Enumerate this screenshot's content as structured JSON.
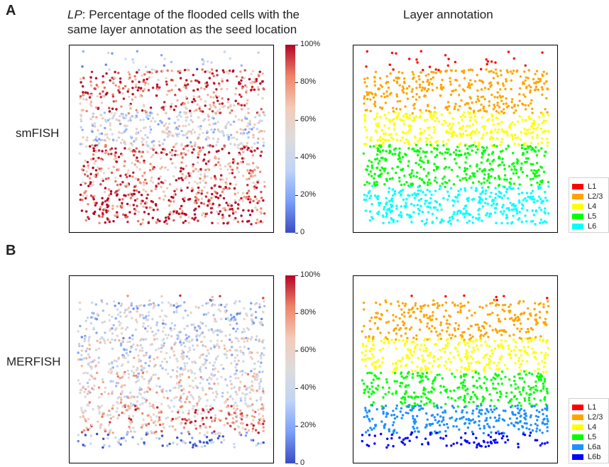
{
  "panels": {
    "a_label": "A",
    "b_label": "B",
    "lp_prefix": "LP",
    "lp_line1_rest": ": Percentage of the flooded cells with the",
    "lp_line2": "same layer annotation as the seed location",
    "layer_title": "Layer annotation",
    "row1_label": "smFISH",
    "row2_label": "MERFISH"
  },
  "colorbar": {
    "ticks": [
      "100%",
      "80%",
      "60%",
      "40%",
      "20%",
      "0"
    ],
    "tick_values": [
      100,
      80,
      60,
      40,
      20,
      0
    ],
    "colormap": "coolwarm",
    "colors": [
      "#3b4cc0",
      "#7b9ff9",
      "#c0d4f5",
      "#dddcdc",
      "#f2cbb7",
      "#ee8468",
      "#b40426"
    ]
  },
  "legend_smfish": [
    {
      "label": "L1",
      "color": "#ff0000"
    },
    {
      "label": "L2/3",
      "color": "#ffa500"
    },
    {
      "label": "L4",
      "color": "#ffff00"
    },
    {
      "label": "L5",
      "color": "#00ff00"
    },
    {
      "label": "L6",
      "color": "#00ffff"
    }
  ],
  "legend_merfish": [
    {
      "label": "L1",
      "color": "#ff0000"
    },
    {
      "label": "L2/3",
      "color": "#ffa500"
    },
    {
      "label": "L4",
      "color": "#ffff00"
    },
    {
      "label": "L5",
      "color": "#00ff00"
    },
    {
      "label": "L6a",
      "color": "#1e90ff"
    },
    {
      "label": "L6b",
      "color": "#0000ff"
    }
  ],
  "chart_data": [
    {
      "type": "scatter",
      "dataset": "smFISH",
      "value": "LP",
      "colorbar_range": [
        0,
        100
      ],
      "layer_bands_lp": [
        {
          "layer": "L1",
          "typical_lp": 20
        },
        {
          "layer": "L2/3",
          "typical_lp": 85
        },
        {
          "layer": "L4",
          "typical_lp": 45
        },
        {
          "layer": "L5",
          "typical_lp": 80
        },
        {
          "layer": "L6",
          "typical_lp": 92
        }
      ]
    },
    {
      "type": "scatter",
      "dataset": "smFISH",
      "value": "Layer annotation",
      "layers": [
        "L1",
        "L2/3",
        "L4",
        "L5",
        "L6"
      ]
    },
    {
      "type": "scatter",
      "dataset": "MERFISH",
      "value": "LP",
      "colorbar_range": [
        0,
        100
      ],
      "layer_bands_lp": [
        {
          "layer": "L1",
          "typical_lp": 85
        },
        {
          "layer": "L2/3",
          "typical_lp": 40
        },
        {
          "layer": "L4",
          "typical_lp": 45
        },
        {
          "layer": "L5",
          "typical_lp": 55
        },
        {
          "layer": "L6a",
          "typical_lp": 70
        },
        {
          "layer": "L6b",
          "typical_lp": 20
        }
      ]
    },
    {
      "type": "scatter",
      "dataset": "MERFISH",
      "value": "Layer annotation",
      "layers": [
        "L1",
        "L2/3",
        "L4",
        "L5",
        "L6a",
        "L6b"
      ]
    }
  ]
}
